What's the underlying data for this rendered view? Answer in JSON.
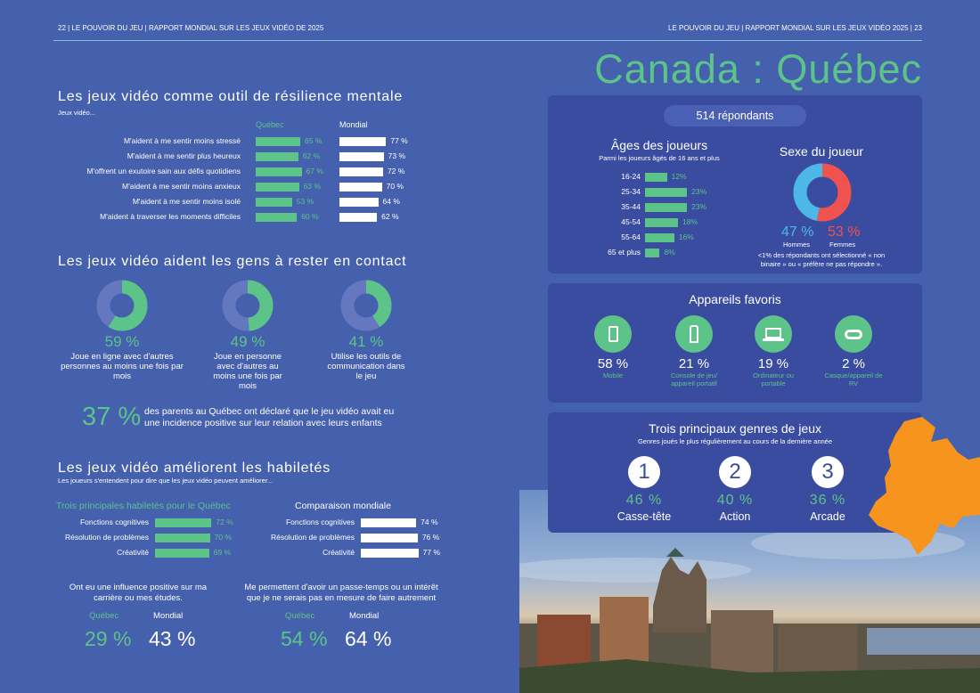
{
  "header": {
    "left": "22   |  LE POUVOIR DU JEU  |  RAPPORT MONDIAL  SUR LES JEUX VIDÉO DE 2025",
    "right": "LE POUVOIR DU JEU  |  RAPPORT MONDIAL  SUR LES JEUX VIDÉO 2025   |   23"
  },
  "page_title": "Canada : Québec",
  "resilience": {
    "title": "Les jeux vidéo comme outil de résilience mentale",
    "subtitle": "Jeux vidéo...",
    "col_quebec": "Québec",
    "col_mondial": "Mondial",
    "rows": [
      {
        "label": "M'aident à me sentir moins stressé",
        "quebec": 65,
        "quebec_label": "65 %",
        "mondial": 77,
        "mondial_label": "77 %"
      },
      {
        "label": "M'aident à me sentir plus heureux",
        "quebec": 62,
        "quebec_label": "62 %",
        "mondial": 73,
        "mondial_label": "73 %"
      },
      {
        "label": "M'offrent un exutoire sain aux défis quotidiens",
        "quebec": 67,
        "quebec_label": "67 %",
        "mondial": 72,
        "mondial_label": "72 %"
      },
      {
        "label": "M'aident à me sentir moins anxieux",
        "quebec": 63,
        "quebec_label": "63 %",
        "mondial": 70,
        "mondial_label": "70 %"
      },
      {
        "label": "M'aident à me sentir moins isolé",
        "quebec": 53,
        "quebec_label": "53 %",
        "mondial": 64,
        "mondial_label": "64 %"
      },
      {
        "label": "M'aident à traverser les moments difficiles",
        "quebec": 60,
        "quebec_label": "60 %",
        "mondial": 62,
        "mondial_label": "62 %"
      }
    ]
  },
  "contact": {
    "title": "Les jeux vidéo aident les gens à rester en contact",
    "donuts": [
      {
        "value": 59,
        "label": "59 %",
        "desc": [
          "Joue en ligne avec d'autres",
          "personnes au moins une fois par",
          "mois"
        ]
      },
      {
        "value": 49,
        "label": "49 %",
        "desc": [
          "Joue en personne",
          "avec d'autres au",
          "moins une fois par",
          "mois"
        ]
      },
      {
        "value": 41,
        "label": "41 %",
        "desc": [
          "Utilise les outils de",
          "communication dans",
          "le jeu"
        ]
      }
    ],
    "parents_pct": "37 %",
    "parents_text": [
      "des parents au Québec ont déclaré que le jeu vidéo avait eu",
      "une incidence positive sur leur relation avec leurs enfants"
    ]
  },
  "skills": {
    "title": "Les jeux vidéo améliorent les habiletés",
    "subtitle": "Les joueurs s'entendent pour dire que les jeux vidéo peuvent améliorer...",
    "quebec_header": "Trois principales habiletés pour le Québec",
    "mondial_header": "Comparaison mondiale",
    "quebec": [
      {
        "label": "Fonctions cognitives",
        "value": 72,
        "pct": "72 %"
      },
      {
        "label": "Résolution de problèmes",
        "value": 70,
        "pct": "70 %"
      },
      {
        "label": "Créativité",
        "value": 69,
        "pct": "69 %"
      }
    ],
    "mondial": [
      {
        "label": "Fonctions cognitives",
        "value": 74,
        "pct": "74 %"
      },
      {
        "label": "Résolution de problèmes",
        "value": 76,
        "pct": "76 %"
      },
      {
        "label": "Créativité",
        "value": 77,
        "pct": "77 %"
      }
    ],
    "stats": [
      {
        "text": [
          "Ont eu une influence positive sur ma",
          "carrière ou mes études."
        ],
        "quebec_label": "Québec",
        "mondial_label": "Mondial",
        "quebec": "29 %",
        "mondial": "43 %"
      },
      {
        "text": [
          "Me permettent d'avoir un passe-temps ou un intérêt",
          "que je ne serais pas en mesure de faire autrement"
        ],
        "quebec_label": "Québec",
        "mondial_label": "Mondial",
        "quebec": "54 %",
        "mondial": "64 %"
      }
    ]
  },
  "respondents": "514 répondants",
  "ages": {
    "title": "Âges des joueurs",
    "subtitle": "Parmi les joueurs âgés de 16 ans et plus",
    "rows": [
      {
        "label": "16-24",
        "value": 12,
        "pct": "12%"
      },
      {
        "label": "25-34",
        "value": 23,
        "pct": "23%"
      },
      {
        "label": "35-44",
        "value": 23,
        "pct": "23%"
      },
      {
        "label": "45-54",
        "value": 18,
        "pct": "18%"
      },
      {
        "label": "55-64",
        "value": 16,
        "pct": "16%"
      },
      {
        "label": "65 et plus",
        "value": 8,
        "pct": "8%"
      }
    ]
  },
  "gender": {
    "title": "Sexe du joueur",
    "men_value": 47,
    "men": "47 %",
    "men_label": "Hommes",
    "women_value": 53,
    "women": "53 %",
    "women_label": "Femmes",
    "note": [
      "<1% des répondants ont sélectionné « non",
      "binaire » ou « préfère ne pas répondre »."
    ],
    "men_color": "#4db8e8",
    "women_color": "#ef5350"
  },
  "devices": {
    "title": "Appareils favoris",
    "items": [
      {
        "icon": "mobile-icon",
        "pct": "58 %",
        "label": [
          "Mobile"
        ]
      },
      {
        "icon": "console-icon",
        "pct": "21 %",
        "label": [
          "Console de jeu/",
          "appareil portatif"
        ]
      },
      {
        "icon": "laptop-icon",
        "pct": "19 %",
        "label": [
          "Ordinateur ou",
          "portable"
        ]
      },
      {
        "icon": "vr-headset-icon",
        "pct": "2 %",
        "label": [
          "Casque/appareil de",
          "RV"
        ]
      }
    ]
  },
  "genres": {
    "title": "Trois principaux  genres de jeux",
    "subtitle": "Genres joués le plus régulièrement au cours de la dernière année",
    "items": [
      {
        "rank": "1",
        "pct": "46 %",
        "label": "Casse-tête"
      },
      {
        "rank": "2",
        "pct": "40 %",
        "label": "Action"
      },
      {
        "rank": "3",
        "pct": "36 %",
        "label": "Arcade"
      }
    ]
  },
  "colors": {
    "background": "#4560ad",
    "panel": "#3a4ca0",
    "accent": "#5cc389",
    "map": "#f7941d"
  }
}
